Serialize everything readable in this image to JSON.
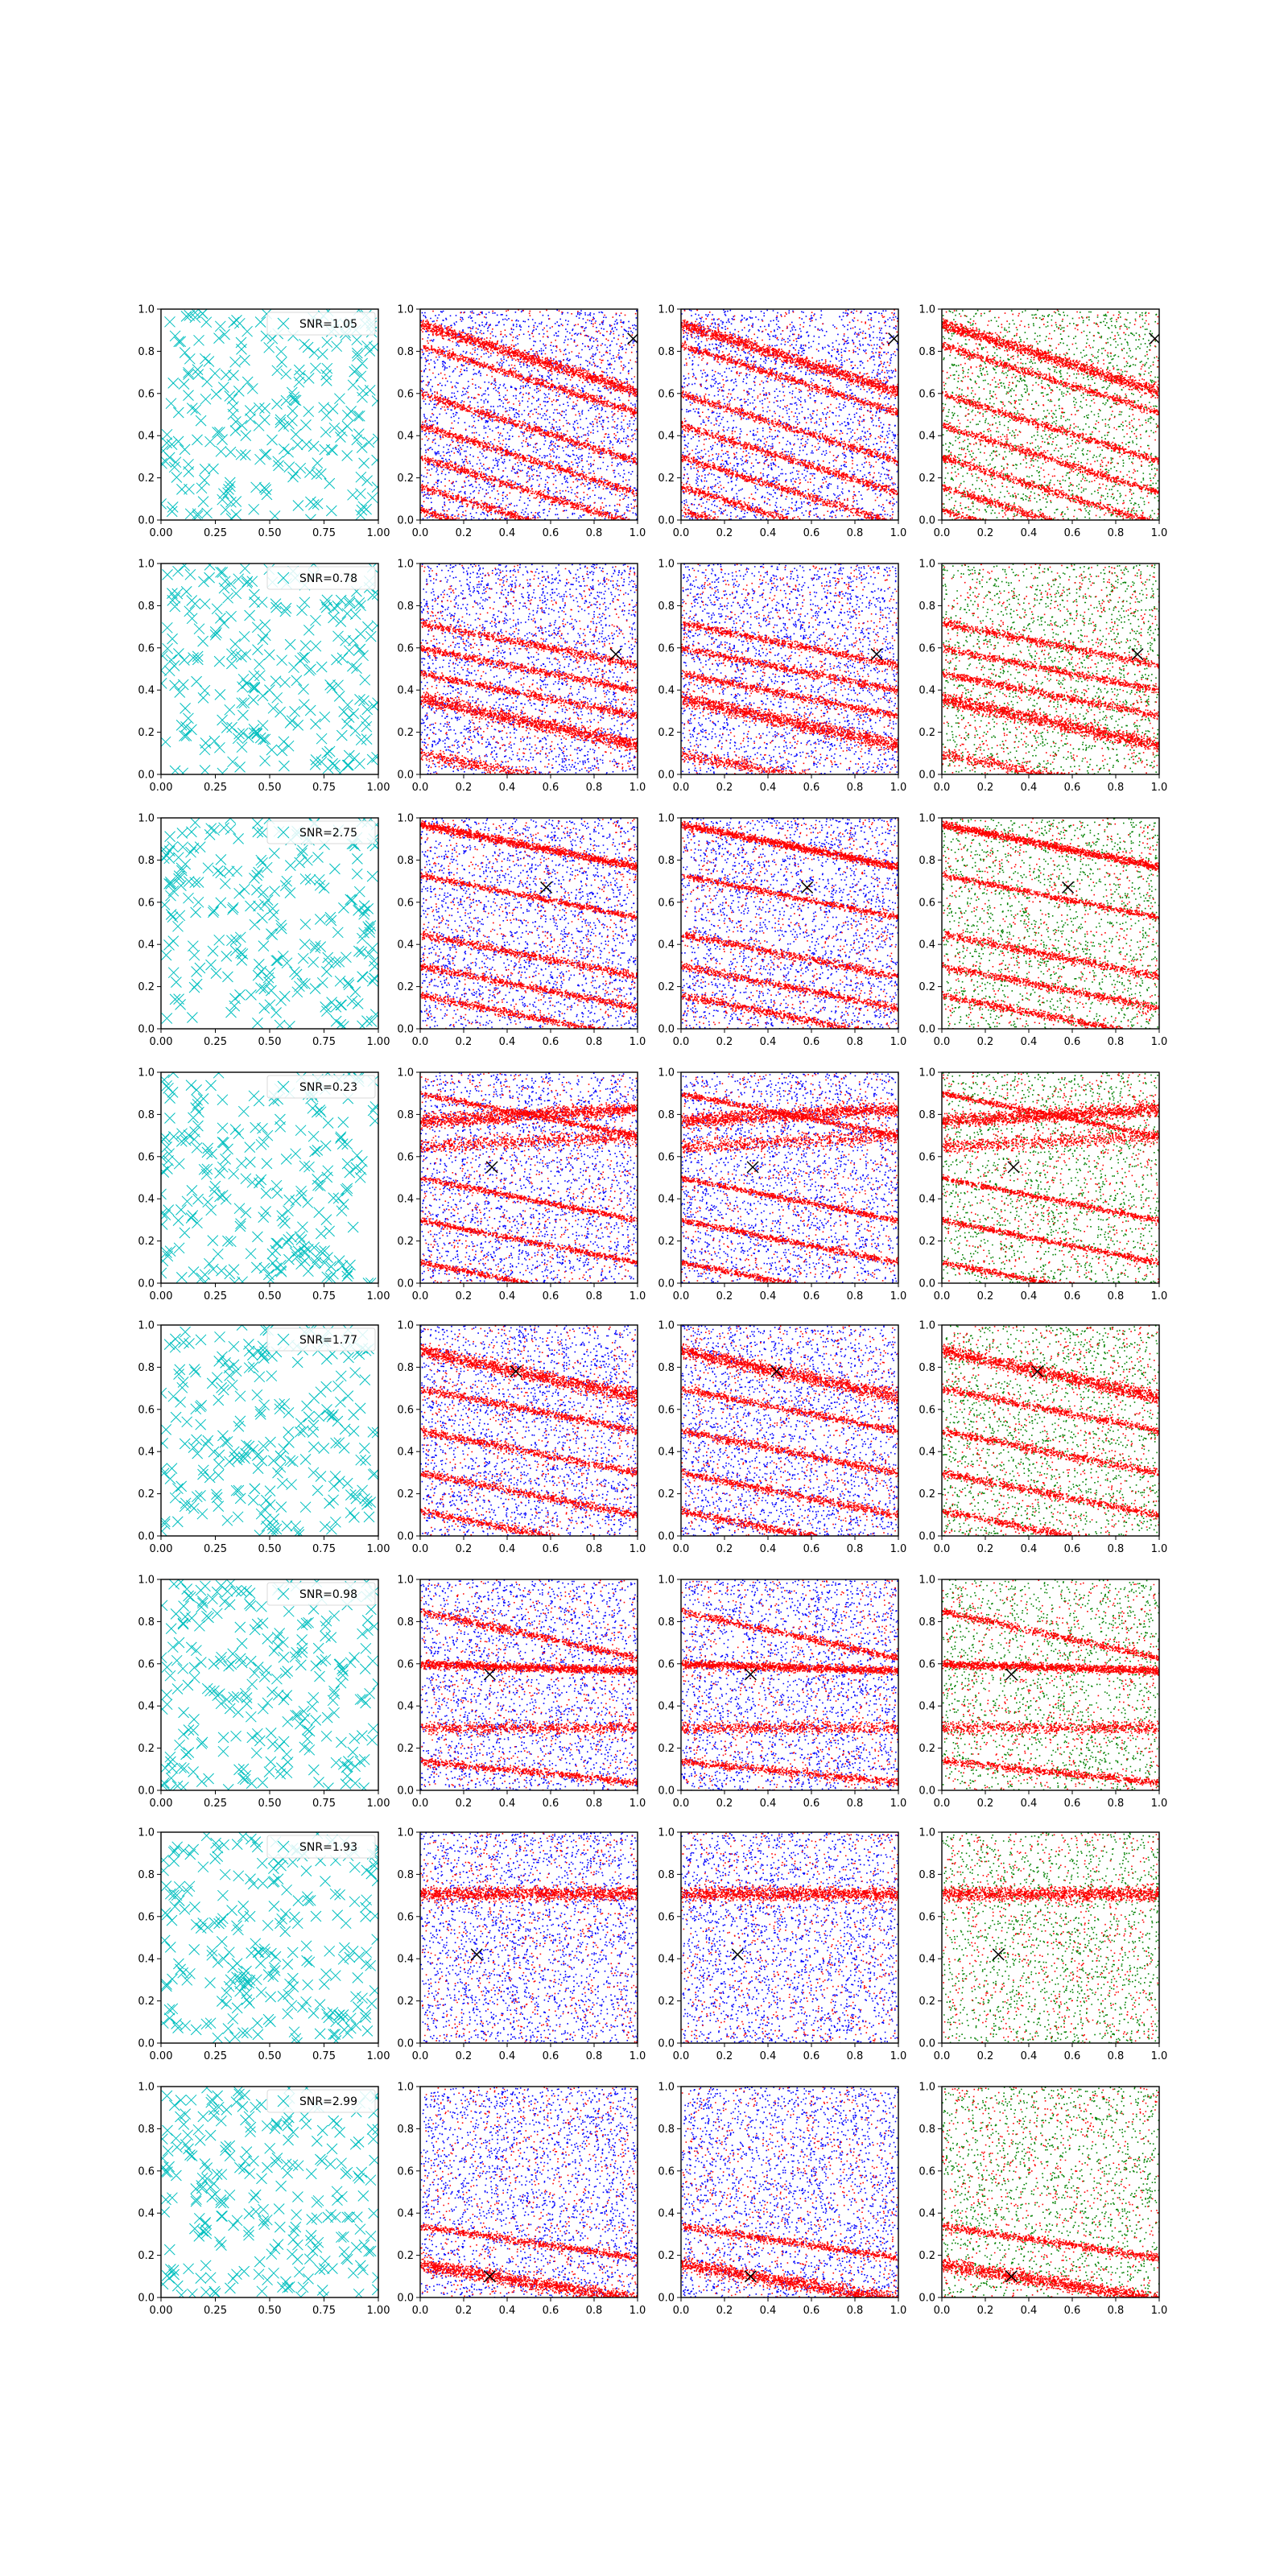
{
  "figure": {
    "rows": 8,
    "cols": 4,
    "colors": {
      "scatter_marker": "#00bfbf",
      "red_points": "#ff0000",
      "blue_points": "#0000ff",
      "green_points": "#008000",
      "x_marker": "#000000",
      "axis": "#000000",
      "legend_edge": "#d9d9d9"
    },
    "tick_labels": {
      "col1_x": [
        "0.00",
        "0.25",
        "0.50",
        "0.75",
        "1.00"
      ],
      "other_x": [
        "0.0",
        "0.2",
        "0.4",
        "0.6",
        "0.8",
        "1.0"
      ],
      "y": [
        "0.0",
        "0.2",
        "0.4",
        "0.6",
        "0.8",
        "1.0"
      ]
    }
  },
  "chart_data": [
    {
      "row": 1,
      "type": "scatter",
      "legend": "SNR=1.05",
      "marker": "x",
      "xlim": [
        0,
        1
      ],
      "ylim": [
        0,
        1
      ],
      "x_point": [
        0.98,
        0.86
      ],
      "stripes": [
        {
          "y0": 0.93,
          "slope": -0.32,
          "w": 0.03
        },
        {
          "y0": 0.83,
          "slope": -0.32,
          "w": 0.02
        },
        {
          "y0": 0.6,
          "slope": -0.32,
          "w": 0.02
        },
        {
          "y0": 0.45,
          "slope": -0.32,
          "w": 0.02
        },
        {
          "y0": 0.3,
          "slope": -0.32,
          "w": 0.02
        },
        {
          "y0": 0.16,
          "slope": -0.32,
          "w": 0.02
        },
        {
          "y0": 0.05,
          "slope": -0.32,
          "w": 0.02
        }
      ]
    },
    {
      "row": 2,
      "type": "scatter",
      "legend": "SNR=0.78",
      "marker": "x",
      "xlim": [
        0,
        1
      ],
      "ylim": [
        0,
        1
      ],
      "x_point": [
        0.9,
        0.57
      ],
      "stripes": [
        {
          "y0": 0.36,
          "slope": -0.22,
          "w": 0.035
        },
        {
          "y0": 0.6,
          "slope": -0.2,
          "w": 0.02
        },
        {
          "y0": 0.1,
          "slope": -0.2,
          "w": 0.03
        },
        {
          "y0": 0.48,
          "slope": -0.2,
          "w": 0.02
        },
        {
          "y0": 0.72,
          "slope": -0.2,
          "w": 0.02
        }
      ]
    },
    {
      "row": 3,
      "type": "scatter",
      "legend": "SNR=2.75",
      "marker": "x",
      "xlim": [
        0,
        1
      ],
      "ylim": [
        0,
        1
      ],
      "x_point": [
        0.58,
        0.67
      ],
      "stripes": [
        {
          "y0": 0.97,
          "slope": -0.2,
          "w": 0.02
        },
        {
          "y0": 0.73,
          "slope": -0.2,
          "w": 0.015
        },
        {
          "y0": 0.45,
          "slope": -0.2,
          "w": 0.02
        },
        {
          "y0": 0.3,
          "slope": -0.2,
          "w": 0.02
        },
        {
          "y0": 0.16,
          "slope": -0.2,
          "w": 0.02
        }
      ]
    },
    {
      "row": 4,
      "type": "scatter",
      "legend": "SNR=0.23",
      "marker": "x",
      "xlim": [
        0,
        1
      ],
      "ylim": [
        0,
        1
      ],
      "x_point": [
        0.33,
        0.55
      ],
      "stripes": [
        {
          "y0": 0.77,
          "slope": 0.06,
          "w": 0.035
        },
        {
          "y0": 0.65,
          "slope": 0.05,
          "w": 0.035
        },
        {
          "y0": 0.9,
          "slope": -0.2,
          "w": 0.015
        },
        {
          "y0": 0.5,
          "slope": -0.2,
          "w": 0.015
        },
        {
          "y0": 0.3,
          "slope": -0.2,
          "w": 0.015
        },
        {
          "y0": 0.1,
          "slope": -0.2,
          "w": 0.015
        }
      ]
    },
    {
      "row": 5,
      "type": "scatter",
      "legend": "SNR=1.77",
      "marker": "x",
      "xlim": [
        0,
        1
      ],
      "ylim": [
        0,
        1
      ],
      "x_point": [
        0.44,
        0.78
      ],
      "stripes": [
        {
          "y0": 0.88,
          "slope": -0.22,
          "w": 0.035
        },
        {
          "y0": 0.7,
          "slope": -0.2,
          "w": 0.02
        },
        {
          "y0": 0.5,
          "slope": -0.2,
          "w": 0.02
        },
        {
          "y0": 0.3,
          "slope": -0.2,
          "w": 0.02
        },
        {
          "y0": 0.12,
          "slope": -0.2,
          "w": 0.02
        }
      ]
    },
    {
      "row": 6,
      "type": "scatter",
      "legend": "SNR=0.98",
      "marker": "x",
      "xlim": [
        0,
        1
      ],
      "ylim": [
        0,
        1
      ],
      "x_point": [
        0.32,
        0.55
      ],
      "stripes": [
        {
          "y0": 0.6,
          "slope": -0.03,
          "w": 0.02
        },
        {
          "y0": 0.3,
          "slope": 0.0,
          "w": 0.03
        },
        {
          "y0": 0.14,
          "slope": -0.1,
          "w": 0.02
        },
        {
          "y0": 0.85,
          "slope": -0.22,
          "w": 0.02
        }
      ]
    },
    {
      "row": 7,
      "type": "scatter",
      "legend": "SNR=1.93",
      "marker": "x",
      "xlim": [
        0,
        1
      ],
      "ylim": [
        0,
        1
      ],
      "x_point": [
        0.26,
        0.42
      ],
      "stripes": [
        {
          "y0": 0.71,
          "slope": 0.0,
          "w": 0.035
        }
      ]
    },
    {
      "row": 8,
      "type": "scatter",
      "legend": "SNR=2.99",
      "marker": "x",
      "xlim": [
        0,
        1
      ],
      "ylim": [
        0,
        1
      ],
      "x_point": [
        0.32,
        0.1
      ],
      "stripes": [
        {
          "y0": 0.16,
          "slope": -0.17,
          "w": 0.035
        },
        {
          "y0": 0.34,
          "slope": -0.15,
          "w": 0.02
        }
      ]
    }
  ]
}
